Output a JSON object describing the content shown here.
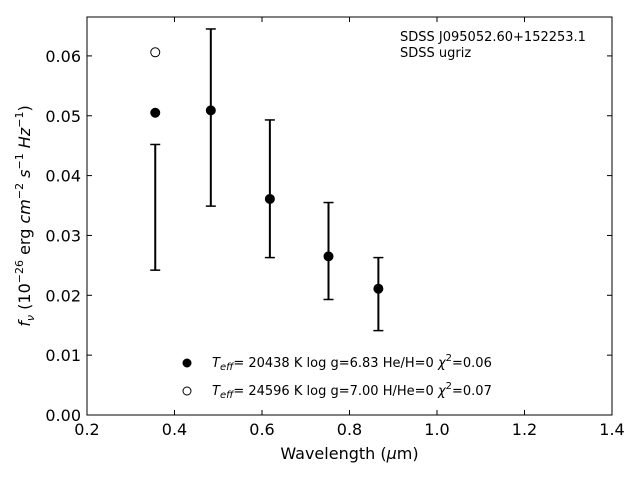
{
  "chart_data": {
    "type": "scatter",
    "xlabel": "Wavelength (μm)",
    "ylabel": "fν (10⁻²⁶ erg cm⁻² s⁻¹ Hz⁻¹)",
    "xlim": [
      0.2,
      1.4
    ],
    "ylim": [
      0.0,
      0.0665
    ],
    "xticks": [
      0.2,
      0.4,
      0.6,
      0.8,
      1.0,
      1.2,
      1.4
    ],
    "xtick_labels": [
      "0.2",
      "0.4",
      "0.6",
      "0.8",
      "1.0",
      "1.2",
      "1.4"
    ],
    "yticks": [
      0.0,
      0.01,
      0.02,
      0.03,
      0.04,
      0.05,
      0.06
    ],
    "ytick_labels": [
      "0.00",
      "0.01",
      "0.02",
      "0.03",
      "0.04",
      "0.05",
      "0.06"
    ],
    "grid": false,
    "annotation": {
      "line1": "SDSS J095052.60+152253.1",
      "line2": "SDSS ugriz"
    },
    "observed": {
      "x": [
        0.356,
        0.483,
        0.618,
        0.752,
        0.866
      ],
      "y": [
        0.0347,
        0.0497,
        0.0378,
        0.0274,
        0.0202
      ],
      "yerr": [
        0.0105,
        0.0148,
        0.0115,
        0.0081,
        0.0061
      ]
    },
    "series": [
      {
        "name": "T_eff= 20438 K  log g=6.83  He/H=0  χ²=0.06",
        "marker": "filled-circle",
        "x": [
          0.356,
          0.483,
          0.618,
          0.752,
          0.866
        ],
        "y": [
          0.0505,
          0.0509,
          0.0361,
          0.0265,
          0.0211
        ]
      },
      {
        "name": "T_eff= 24596 K  log g=7.00  H/He=0  χ²=0.07",
        "marker": "open-circle",
        "x": [
          0.356
        ],
        "y": [
          0.0606
        ]
      }
    ],
    "legend": [
      {
        "marker": "filled-circle",
        "teff_value": "= 20438 K",
        "logg": "log g=6.83",
        "composition": "He/H=0",
        "chi2": "=0.06"
      },
      {
        "marker": "open-circle",
        "teff_value": "= 24596 K",
        "logg": "log g=7.00",
        "composition": "H/He=0",
        "chi2": "=0.07"
      }
    ],
    "legend_position": "lower-center"
  }
}
